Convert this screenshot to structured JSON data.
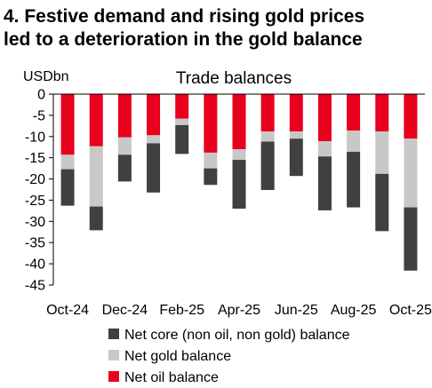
{
  "headline": {
    "line1": "4. Festive demand and rising gold prices",
    "line2": "led to a deterioration in the gold balance"
  },
  "chart_data": {
    "type": "bar",
    "stacked": true,
    "title": "Trade balances",
    "unit_label": "USDbn",
    "categories": [
      "Oct-24",
      "Nov-24",
      "Dec-24",
      "Jan-25",
      "Feb-25",
      "Mar-25",
      "Apr-25",
      "May-25",
      "Jun-25",
      "Jul-25",
      "Aug-25",
      "Sep-25",
      "Oct-25"
    ],
    "x_tick_labels": [
      "Oct-24",
      "Dec-24",
      "Feb-25",
      "Apr-25",
      "Jun-25",
      "Aug-25",
      "Oct-25"
    ],
    "y_ticks": [
      0,
      -5,
      -10,
      -15,
      -20,
      -25,
      -30,
      -35,
      -40,
      -45
    ],
    "ylim": [
      -45,
      0
    ],
    "series": [
      {
        "name": "Net oil balance",
        "color": "#e8001c",
        "values": [
          -14.3,
          -12.3,
          -10.2,
          -9.7,
          -5.8,
          -13.8,
          -13.0,
          -8.8,
          -8.8,
          -11.1,
          -8.6,
          -8.8,
          -10.5
        ]
      },
      {
        "name": "Net gold balance",
        "color": "#c8c8c8",
        "values": [
          -3.4,
          -14.2,
          -4.1,
          -1.9,
          -1.5,
          -3.7,
          -2.5,
          -2.4,
          -1.7,
          -3.6,
          -5.0,
          -10.0,
          -16.2
        ]
      },
      {
        "name": "Net core (non oil, non gold) balance",
        "color": "#404040",
        "values": [
          -8.6,
          -5.6,
          -6.3,
          -11.6,
          -6.8,
          -3.9,
          -11.5,
          -11.4,
          -8.8,
          -12.7,
          -13.1,
          -13.5,
          -14.9
        ]
      }
    ],
    "legend": {
      "placement": "bottom",
      "order": [
        "Net core (non oil, non gold) balance",
        "Net gold balance",
        "Net oil balance"
      ]
    },
    "grid": false
  }
}
